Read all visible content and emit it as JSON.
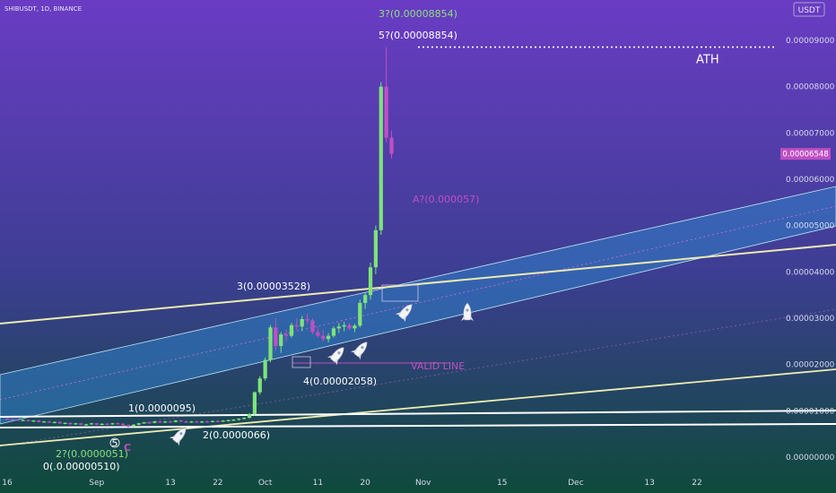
{
  "header": {
    "symbol_line": "SHIBUSDT, 1D, BINANCE",
    "currency_badge": "USDT"
  },
  "price_tag": "0.00006548",
  "colors": {
    "bg_top": "#6a3cc4",
    "bg_bottom": "#0e4a3a",
    "up": "#7ee37a",
    "down": "#c04fc4",
    "channel_fill": "#2f7fc8",
    "trendline": "#ecebb0",
    "fib_label": "#8be07c",
    "accent_pink": "#c04fc4"
  },
  "chart_data": {
    "type": "candlestick",
    "y_ticks": [
      "0.00000000",
      "0.00001000",
      "0.00002000",
      "0.00003000",
      "0.00004000",
      "0.00005000",
      "0.00006000",
      "0.00007000",
      "0.00008000",
      "0.00009000"
    ],
    "ylim": [
      -4e-07,
      0.0001
    ],
    "x_tick_labels": [
      "16",
      "Sep",
      "13",
      "22",
      "Oct",
      "11",
      "20",
      "Nov",
      "15",
      "Dec",
      "13",
      "22"
    ],
    "x_tick_index": [
      0,
      17,
      31,
      40,
      49,
      59,
      68,
      79,
      94,
      108,
      122,
      131
    ],
    "ath_value": 8.854e-05,
    "ath_label": "ATH",
    "last_price": 6.548e-05,
    "candles": [
      [
        0,
        8.3e-06,
        8.5e-06,
        8.1e-06,
        8.2e-06
      ],
      [
        1,
        8.2e-06,
        8.3e-06,
        8e-06,
        8.1e-06
      ],
      [
        2,
        8.1e-06,
        8.2e-06,
        7.8e-06,
        7.9e-06
      ],
      [
        3,
        7.9e-06,
        8.1e-06,
        7.8e-06,
        8e-06
      ],
      [
        4,
        8e-06,
        8.1e-06,
        7.7e-06,
        7.8e-06
      ],
      [
        5,
        7.8e-06,
        8e-06,
        7.6e-06,
        7.9e-06
      ],
      [
        6,
        7.9e-06,
        8e-06,
        7.5e-06,
        7.6e-06
      ],
      [
        7,
        7.6e-06,
        7.8e-06,
        7.5e-06,
        7.7e-06
      ],
      [
        8,
        7.7e-06,
        7.8e-06,
        7.4e-06,
        7.5e-06
      ],
      [
        9,
        7.5e-06,
        7.7e-06,
        7.3e-06,
        7.6e-06
      ],
      [
        10,
        7.6e-06,
        7.7e-06,
        7.2e-06,
        7.3e-06
      ],
      [
        11,
        7.3e-06,
        7.5e-06,
        7.1e-06,
        7.4e-06
      ],
      [
        12,
        7.4e-06,
        7.5e-06,
        7e-06,
        7.1e-06
      ],
      [
        13,
        7.1e-06,
        7.4e-06,
        7e-06,
        7.3e-06
      ],
      [
        14,
        7.3e-06,
        7.4e-06,
        6.9e-06,
        7e-06
      ],
      [
        15,
        7e-06,
        7.2e-06,
        6.8e-06,
        7.1e-06
      ],
      [
        16,
        7.1e-06,
        7.4e-06,
        7e-06,
        7.3e-06
      ],
      [
        17,
        7.3e-06,
        7.4e-06,
        6.9e-06,
        7e-06
      ],
      [
        18,
        7e-06,
        7.3e-06,
        6.9e-06,
        7.2e-06
      ],
      [
        19,
        7.2e-06,
        7.4e-06,
        7e-06,
        7.1e-06
      ],
      [
        20,
        7.1e-06,
        7.4e-06,
        7e-06,
        7.3e-06
      ],
      [
        21,
        7.3e-06,
        7.5e-06,
        7.1e-06,
        7.2e-06
      ],
      [
        22,
        7.2e-06,
        7.4e-06,
        6.8e-06,
        6.9e-06
      ],
      [
        23,
        6.9e-06,
        7.1e-06,
        6.4e-06,
        6.6e-06
      ],
      [
        24,
        6.6e-06,
        7.1e-06,
        6.5e-06,
        7e-06
      ],
      [
        25,
        7e-06,
        7.4e-06,
        6.9e-06,
        7.3e-06
      ],
      [
        26,
        7.3e-06,
        7.6e-06,
        7.2e-06,
        7.5e-06
      ],
      [
        27,
        7.5e-06,
        7.7e-06,
        7.3e-06,
        7.4e-06
      ],
      [
        28,
        7.4e-06,
        7.8e-06,
        7.3e-06,
        7.7e-06
      ],
      [
        29,
        7.7e-06,
        7.8e-06,
        7.4e-06,
        7.5e-06
      ],
      [
        30,
        7.5e-06,
        7.8e-06,
        7.4e-06,
        7.7e-06
      ],
      [
        31,
        7.7e-06,
        7.9e-06,
        7.5e-06,
        7.6e-06
      ],
      [
        32,
        7.6e-06,
        8e-06,
        7.5e-06,
        7.9e-06
      ],
      [
        33,
        7.9e-06,
        8.1e-06,
        7.6e-06,
        7.7e-06
      ],
      [
        34,
        7.7e-06,
        7.9e-06,
        7.4e-06,
        7.5e-06
      ],
      [
        35,
        7.5e-06,
        7.8e-06,
        7.4e-06,
        7.7e-06
      ],
      [
        36,
        7.7e-06,
        7.9e-06,
        7.5e-06,
        7.6e-06
      ],
      [
        37,
        7.6e-06,
        7.8e-06,
        7.4e-06,
        7.7e-06
      ],
      [
        38,
        7.7e-06,
        7.9e-06,
        7.5e-06,
        7.6e-06
      ],
      [
        39,
        7.6e-06,
        7.9e-06,
        7.5e-06,
        7.8e-06
      ],
      [
        40,
        7.8e-06,
        8e-06,
        7.6e-06,
        7.7e-06
      ],
      [
        41,
        7.7e-06,
        8e-06,
        7.6e-06,
        7.9e-06
      ],
      [
        42,
        7.9e-06,
        8.1e-06,
        7.7e-06,
        8e-06
      ],
      [
        43,
        8e-06,
        8.2e-06,
        7.8e-06,
        8.1e-06
      ],
      [
        44,
        8.1e-06,
        8.4e-06,
        7.9e-06,
        8.3e-06
      ],
      [
        45,
        8.3e-06,
        8.6e-06,
        8.1e-06,
        8.5e-06
      ],
      [
        46,
        8.5e-06,
        9.5e-06,
        8.3e-06,
        9.3e-06
      ],
      [
        47,
        9.3e-06,
        1.42e-05,
        9e-06,
        1.4e-05
      ],
      [
        48,
        1.4e-05,
        1.75e-05,
        1.35e-05,
        1.7e-05
      ],
      [
        49,
        1.7e-05,
        2.15e-05,
        1.65e-05,
        2.1e-05
      ],
      [
        50,
        2.1e-05,
        2.85e-05,
        2.05e-05,
        2.8e-05
      ],
      [
        51,
        2.8e-05,
        3e-05,
        2.3e-05,
        2.4e-05
      ],
      [
        52,
        2.4e-05,
        2.7e-05,
        2.25e-05,
        2.65e-05
      ],
      [
        53,
        2.65e-05,
        2.75e-05,
        2.5e-05,
        2.62e-05
      ],
      [
        54,
        2.62e-05,
        2.9e-05,
        2.58e-05,
        2.85e-05
      ],
      [
        55,
        2.85e-05,
        3e-05,
        2.75e-05,
        2.82e-05
      ],
      [
        56,
        2.82e-05,
        3.05e-05,
        2.72e-05,
        2.98e-05
      ],
      [
        57,
        2.98e-05,
        3.1e-05,
        2.88e-05,
        2.95e-05
      ],
      [
        58,
        2.95e-05,
        3e-05,
        2.65e-05,
        2.7e-05
      ],
      [
        59,
        2.7e-05,
        2.82e-05,
        2.58e-05,
        2.62e-05
      ],
      [
        60,
        2.62e-05,
        2.75e-05,
        2.5e-05,
        2.55e-05
      ],
      [
        61,
        2.55e-05,
        2.68e-05,
        2.48e-05,
        2.62e-05
      ],
      [
        62,
        2.62e-05,
        2.82e-05,
        2.58e-05,
        2.78e-05
      ],
      [
        63,
        2.78e-05,
        2.9e-05,
        2.68e-05,
        2.82e-05
      ],
      [
        64,
        2.82e-05,
        2.92e-05,
        2.72e-05,
        2.85e-05
      ],
      [
        65,
        2.85e-05,
        2.9e-05,
        2.74e-05,
        2.78e-05
      ],
      [
        66,
        2.78e-05,
        2.88e-05,
        2.7e-05,
        2.84e-05
      ],
      [
        67,
        2.84e-05,
        3.4e-05,
        2.8e-05,
        3.33e-05
      ],
      [
        68,
        3.33e-05,
        3.55e-05,
        3.2e-05,
        3.5e-05
      ],
      [
        69,
        3.5e-05,
        4.2e-05,
        3.4e-05,
        4.1e-05
      ],
      [
        70,
        4.1e-05,
        5e-05,
        3.95e-05,
        4.9e-05
      ],
      [
        71,
        4.9e-05,
        8.1e-05,
        4.8e-05,
        8e-05
      ],
      [
        72,
        8e-05,
        8.85e-05,
        6.8e-05,
        6.9e-05
      ],
      [
        73,
        6.9e-05,
        7.05e-05,
        6.45e-05,
        6.55e-05
      ]
    ],
    "labels": [
      {
        "text": "3?(0.00008854)",
        "color": "fib_label"
      },
      {
        "text": "5?(0.00008854)",
        "color": "white"
      },
      {
        "text": "A?(0.000057)",
        "color": "accent_pink"
      },
      {
        "text": "3(0.00003528)",
        "color": "white"
      },
      {
        "text": "4(0.00002058)",
        "color": "white"
      },
      {
        "text": "VALID LINE",
        "color": "accent_pink"
      },
      {
        "text": "1(0.0000095)",
        "color": "white"
      },
      {
        "text": "2(0.0000066)",
        "color": "white"
      },
      {
        "text": "2?(0.0000051)",
        "color": "fib_label"
      },
      {
        "text": "0(.0.00000510)",
        "color": "white"
      },
      {
        "text": "5",
        "color": "white"
      },
      {
        "text": "C",
        "color": "accent_pink"
      }
    ]
  }
}
